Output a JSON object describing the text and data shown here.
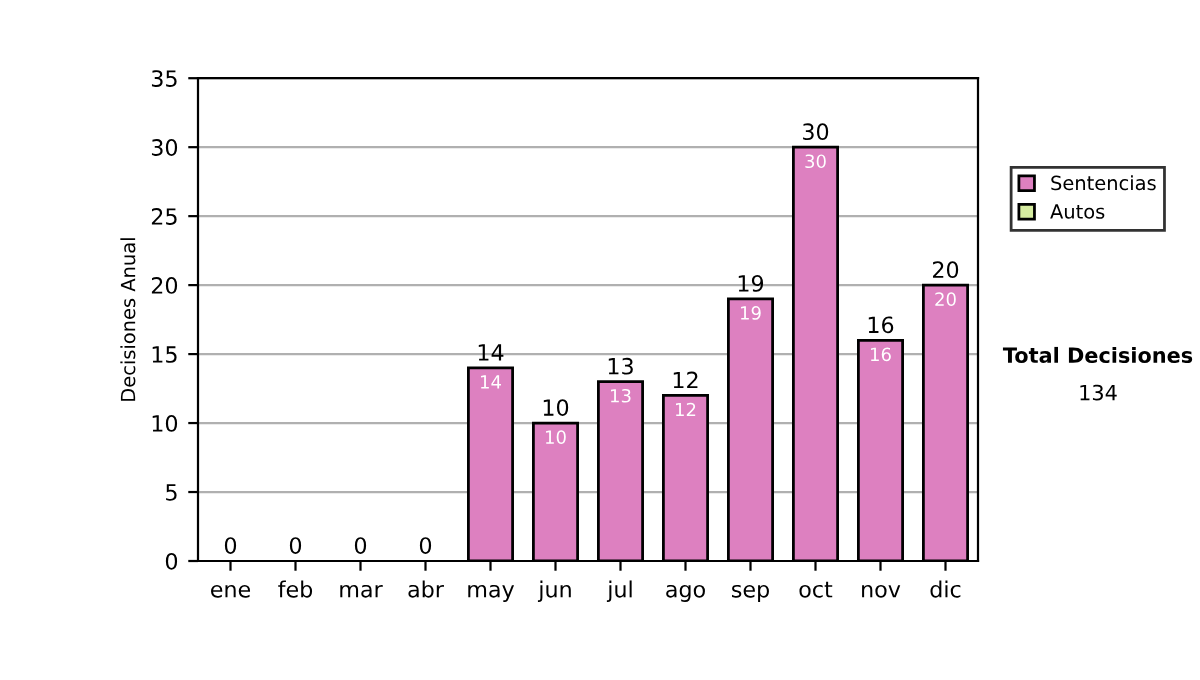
{
  "chart_data": {
    "type": "bar",
    "ylabel": "Decisiones Anual",
    "categories": [
      "ene",
      "feb",
      "mar",
      "abr",
      "may",
      "jun",
      "jul",
      "ago",
      "sep",
      "oct",
      "nov",
      "dic"
    ],
    "stacked": true,
    "series": [
      {
        "name": "Sentencias",
        "color": "#dd80c0",
        "values": [
          0,
          0,
          0,
          0,
          14,
          10,
          13,
          12,
          19,
          30,
          16,
          20
        ],
        "value_labels": [
          null,
          null,
          null,
          null,
          "14",
          "10",
          "13",
          "12",
          "19",
          "30",
          "16",
          "20"
        ]
      },
      {
        "name": "Autos",
        "color": "#d6eca0",
        "values": [
          0,
          0,
          0,
          0,
          0,
          0,
          0,
          0,
          0,
          0,
          0,
          0
        ]
      }
    ],
    "totals": [
      "0",
      "0",
      "0",
      "0",
      "14",
      "10",
      "13",
      "12",
      "19",
      "30",
      "16",
      "20"
    ],
    "ylim": [
      0,
      35
    ],
    "yticks": [
      0,
      5,
      10,
      15,
      20,
      25,
      30,
      35
    ],
    "grid": "y",
    "legend": "right",
    "annotations": [
      "Total Decisiones",
      "134"
    ]
  }
}
